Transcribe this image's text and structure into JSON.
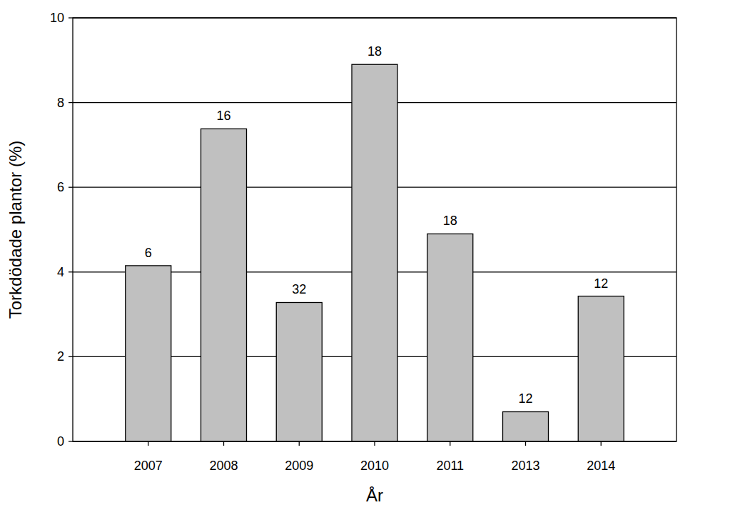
{
  "chart_data": {
    "type": "bar",
    "x_label": "År",
    "y_label": "Torkdödade plantor (%)",
    "categories": [
      "2007",
      "2008",
      "2009",
      "2010",
      "2011",
      "2013",
      "2014"
    ],
    "values": [
      4.15,
      7.38,
      3.28,
      8.9,
      4.9,
      0.7,
      3.43
    ],
    "annotations": [
      6,
      16,
      32,
      18,
      18,
      12,
      12
    ],
    "color": "#c0c0c0",
    "ylim": [
      0,
      10
    ],
    "yticks": [
      0,
      2,
      4,
      6,
      8,
      10
    ],
    "grid": true
  }
}
